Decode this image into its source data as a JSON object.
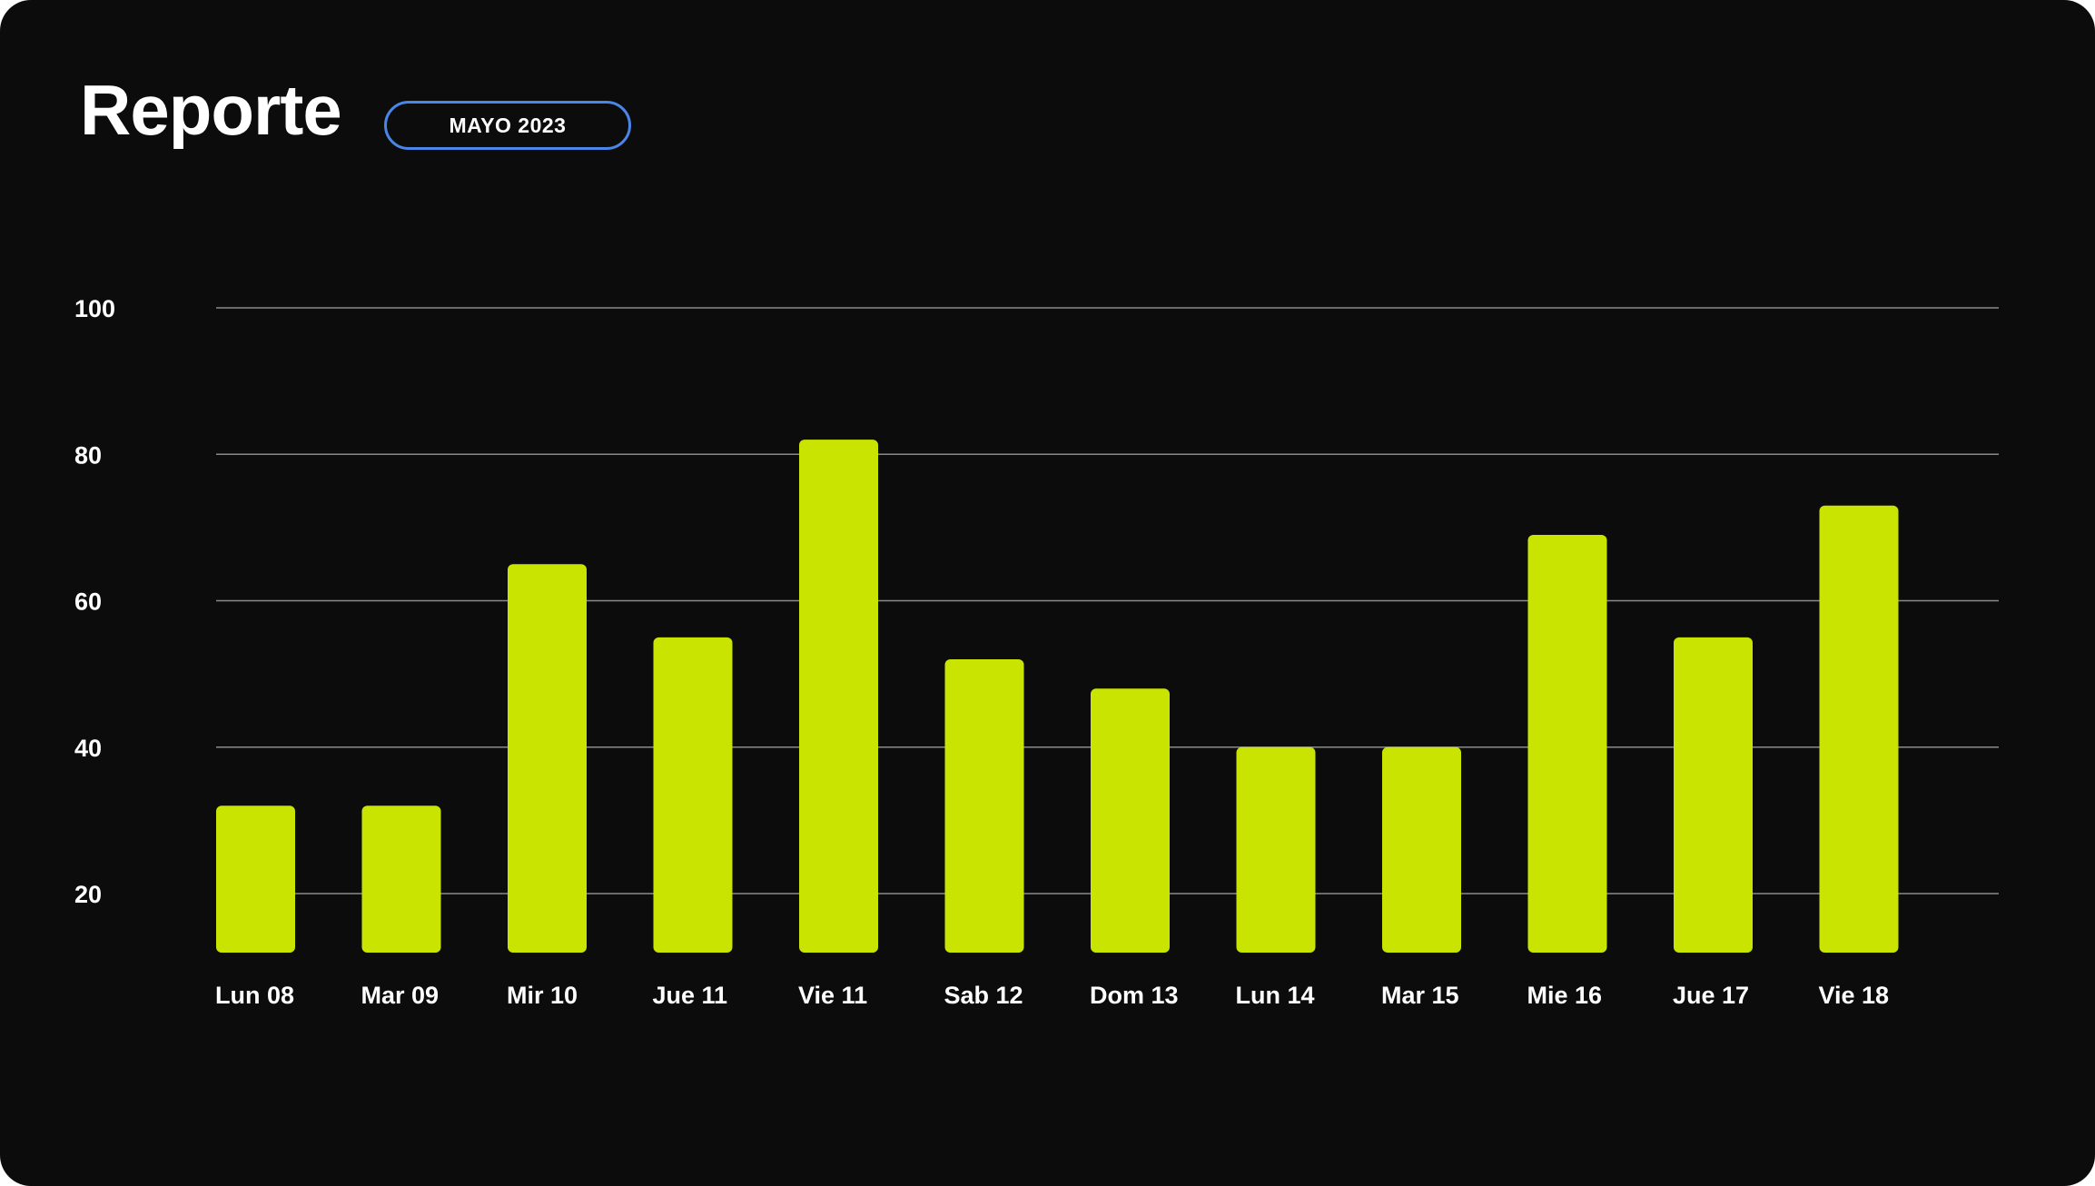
{
  "header": {
    "title": "Reporte",
    "period_badge": "MAYO 2023"
  },
  "colors": {
    "background": "#0c0c0d",
    "bar": "#c9e400",
    "grid": "#8a8a8a",
    "badge_border": "#4a86e8"
  },
  "chart_data": {
    "type": "bar",
    "title": "",
    "xlabel": "",
    "ylabel": "",
    "categories": [
      "Lun 08",
      "Mar 09",
      "Mir 10",
      "Jue 11",
      "Vie 11",
      "Sab 12",
      "Dom 13",
      "Lun 14",
      "Mar 15",
      "Mie 16",
      "Jue 17",
      "Vie 18"
    ],
    "values": [
      32,
      32,
      65,
      55,
      82,
      52,
      48,
      40,
      40,
      69,
      55,
      73
    ],
    "yticks": [
      20,
      40,
      60,
      80,
      100
    ],
    "ylim": [
      12,
      100
    ],
    "grid": true,
    "legend": "none"
  }
}
